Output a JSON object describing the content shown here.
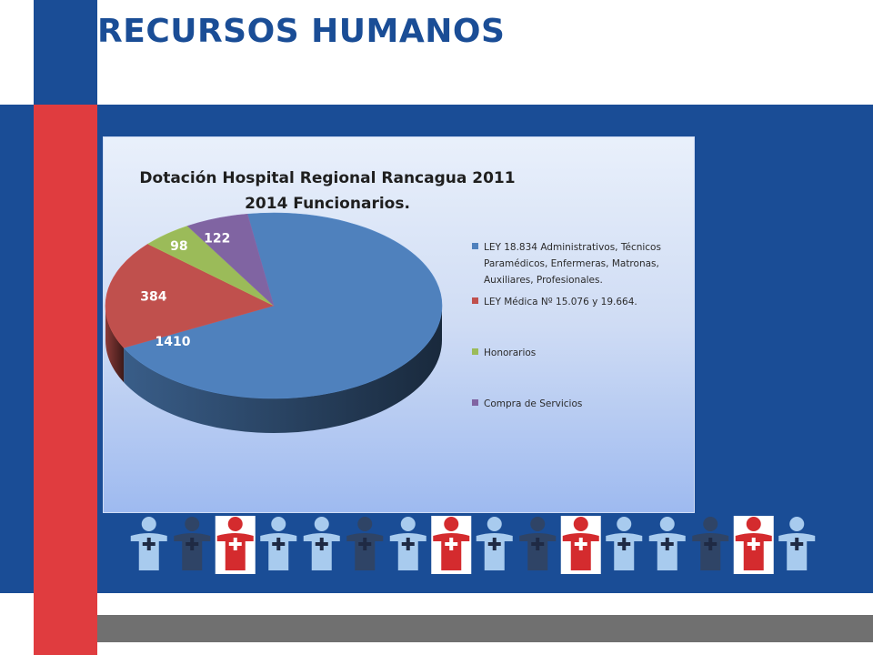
{
  "slide": {
    "title": "RECURSOS HUMANOS"
  },
  "colors": {
    "brand_blue": "#1a4d96",
    "brand_red": "#e03c3f",
    "footer_gray": "#707070"
  },
  "chart_data": {
    "type": "pie",
    "style": "3d",
    "title_lines": [
      "Dotación Hospital Regional Rancagua 2011",
      "2014 Funcionarios."
    ],
    "legend_position": "right",
    "slices": [
      {
        "label": "LEY 18.834 Administrativos, Técnicos Paramédicos, Enfermeras, Matronas, Auxiliares, Profesionales.",
        "legend_lines": [
          "LEY 18.834 Administrativos, Técnicos",
          "Paramédicos, Enfermeras, Matronas,",
          "Auxiliares, Profesionales."
        ],
        "value": 1410,
        "color": "#4f81bd"
      },
      {
        "label": "LEY Médica Nº 15.076 y 19.664.",
        "legend_lines": [
          "LEY Médica Nº 15.076 y 19.664."
        ],
        "value": 384,
        "color": "#c0504d"
      },
      {
        "label": "Honorarios",
        "legend_lines": [
          "Honorarios"
        ],
        "value": 98,
        "color": "#9bbb59"
      },
      {
        "label": "Compra de Servicios",
        "legend_lines": [
          "Compra de Servicios"
        ],
        "value": 122,
        "color": "#8064a2"
      }
    ]
  },
  "decoration": {
    "figure_row": [
      "light-blue",
      "navy",
      "red",
      "light-blue",
      "light-blue",
      "navy",
      "light-blue",
      "red",
      "light-blue",
      "navy",
      "red",
      "light-blue",
      "light-blue",
      "navy",
      "red",
      "light-blue"
    ]
  }
}
